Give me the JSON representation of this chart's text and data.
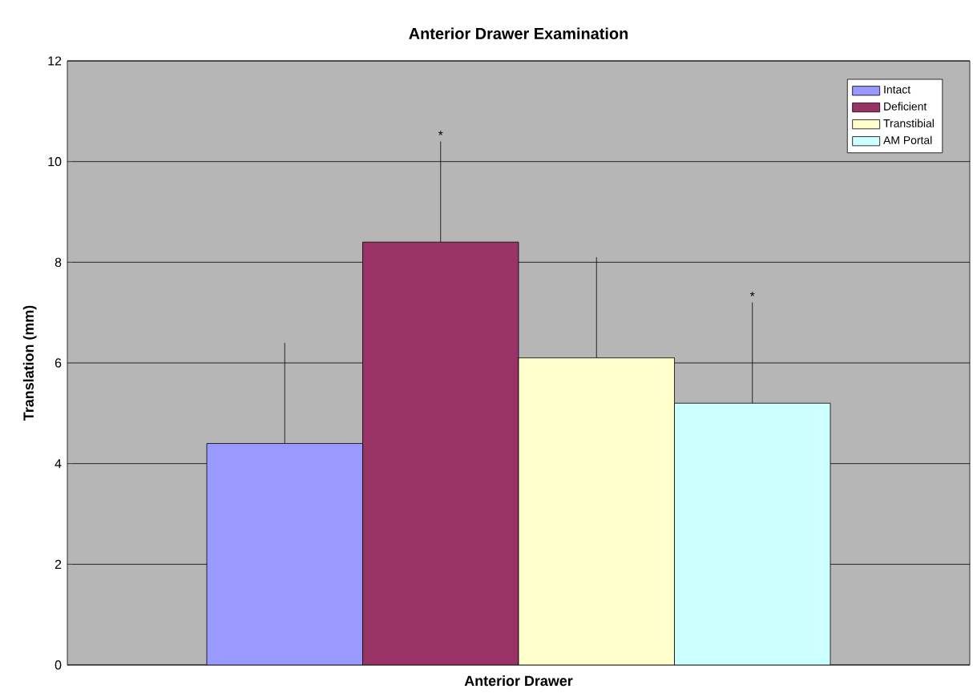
{
  "chart_data": {
    "type": "bar",
    "title": "Anterior Drawer Examination",
    "ylabel": "Translation (mm)",
    "categories": [
      "Anterior Drawer"
    ],
    "series": [
      {
        "name": "Intact",
        "color": "#9999ff",
        "values": [
          4.4
        ],
        "errors": [
          [
            4.4,
            6.4
          ]
        ]
      },
      {
        "name": "Deficient",
        "color": "#993366",
        "values": [
          8.4
        ],
        "errors": [
          [
            8.4,
            10.4
          ]
        ]
      },
      {
        "name": "Transtibial",
        "color": "#ffffcc",
        "values": [
          6.1
        ],
        "errors": [
          [
            6.1,
            8.1
          ]
        ]
      },
      {
        "name": "AM Portal",
        "color": "#ccffff",
        "values": [
          5.2
        ],
        "errors": [
          [
            5.2,
            7.2
          ]
        ]
      }
    ],
    "annotations": [
      "*",
      "*"
    ],
    "ylim": [
      0,
      12
    ],
    "yticks": [
      0,
      2,
      4,
      6,
      8,
      10,
      12
    ],
    "grid": "y",
    "legend": "top right"
  }
}
